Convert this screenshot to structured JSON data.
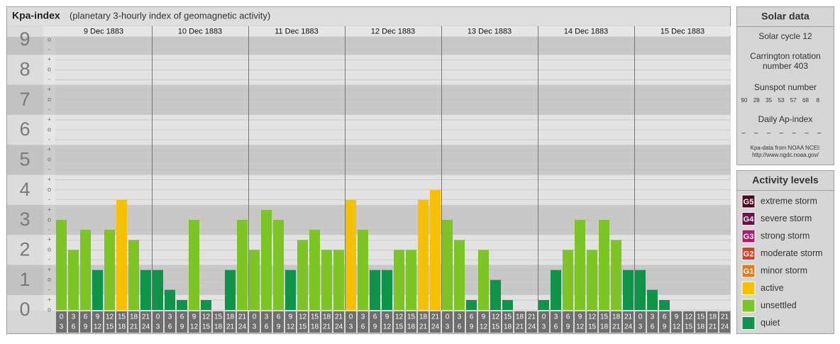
{
  "header": {
    "title": "Kpa-index",
    "subtitle": "(planetary 3-hourly index of geomagnetic activity)"
  },
  "chart_data": {
    "type": "bar",
    "ylim": [
      0,
      9
    ],
    "yticks": [
      0,
      1,
      2,
      3,
      4,
      5,
      6,
      7,
      8,
      9
    ],
    "yminorticks": [
      {
        "value": 0,
        "label": "o"
      },
      {
        "value": 0.33,
        "label": "+"
      },
      {
        "value": 0.67,
        "label": "-"
      },
      {
        "value": 1,
        "label": "o"
      },
      {
        "value": 1.33,
        "label": "+"
      },
      {
        "value": 1.67,
        "label": "-"
      },
      {
        "value": 2,
        "label": "o"
      },
      {
        "value": 2.33,
        "label": "+"
      },
      {
        "value": 2.67,
        "label": "-"
      },
      {
        "value": 3,
        "label": "o"
      },
      {
        "value": 3.33,
        "label": "+"
      },
      {
        "value": 3.67,
        "label": "-"
      },
      {
        "value": 4,
        "label": "o"
      },
      {
        "value": 4.33,
        "label": "+"
      },
      {
        "value": 4.67,
        "label": "-"
      },
      {
        "value": 5,
        "label": "o"
      },
      {
        "value": 5.33,
        "label": "+"
      },
      {
        "value": 5.67,
        "label": "-"
      },
      {
        "value": 6,
        "label": "o"
      },
      {
        "value": 6.33,
        "label": "+"
      },
      {
        "value": 6.67,
        "label": "-"
      },
      {
        "value": 7,
        "label": "o"
      },
      {
        "value": 7.33,
        "label": "+"
      },
      {
        "value": 7.67,
        "label": "-"
      },
      {
        "value": 8,
        "label": "o"
      },
      {
        "value": 8.33,
        "label": "+"
      },
      {
        "value": 8.67,
        "label": "-"
      },
      {
        "value": 9,
        "label": "o"
      }
    ],
    "hour_bins": [
      [
        0,
        3
      ],
      [
        3,
        6
      ],
      [
        6,
        9
      ],
      [
        9,
        12
      ],
      [
        12,
        15
      ],
      [
        15,
        18
      ],
      [
        18,
        21
      ],
      [
        21,
        24
      ]
    ],
    "days": [
      {
        "date": "9 Dec 1883",
        "values": [
          3,
          2,
          2.67,
          1.33,
          2.67,
          3.67,
          2.33,
          1.33
        ],
        "colors": [
          "#7dc425",
          "#7dc425",
          "#7dc425",
          "#0d9448",
          "#7dc425",
          "#f7c000",
          "#7dc425",
          "#0d9448"
        ]
      },
      {
        "date": "10 Dec 1883",
        "values": [
          1.33,
          0.67,
          0.33,
          3,
          0.33,
          0,
          1.33,
          3
        ],
        "colors": [
          "#0d9448",
          "#0d9448",
          "#0d9448",
          "#7dc425",
          "#0d9448",
          "#0d9448",
          "#0d9448",
          "#7dc425"
        ]
      },
      {
        "date": "11 Dec 1883",
        "values": [
          2,
          3.33,
          3,
          1.33,
          2.33,
          2.67,
          2,
          2
        ],
        "colors": [
          "#7dc425",
          "#7dc425",
          "#7dc425",
          "#0d9448",
          "#7dc425",
          "#7dc425",
          "#7dc425",
          "#7dc425"
        ]
      },
      {
        "date": "12 Dec 1883",
        "values": [
          3.67,
          2.67,
          1.33,
          1.33,
          2,
          2,
          3.67,
          4
        ],
        "colors": [
          "#f7c000",
          "#7dc425",
          "#0d9448",
          "#0d9448",
          "#7dc425",
          "#7dc425",
          "#f7c000",
          "#f7c000"
        ]
      },
      {
        "date": "13 Dec 1883",
        "values": [
          3,
          2.33,
          0.33,
          2,
          1,
          0.33,
          0,
          0
        ],
        "colors": [
          "#7dc425",
          "#7dc425",
          "#0d9448",
          "#7dc425",
          "#0d9448",
          "#0d9448",
          "#0d9448",
          "#0d9448"
        ]
      },
      {
        "date": "14 Dec 1883",
        "values": [
          0.33,
          1.33,
          2,
          3,
          2,
          3,
          2.33,
          1.33
        ],
        "colors": [
          "#0d9448",
          "#0d9448",
          "#7dc425",
          "#7dc425",
          "#7dc425",
          "#7dc425",
          "#7dc425",
          "#0d9448"
        ]
      },
      {
        "date": "15 Dec 1883",
        "values": [
          1.33,
          0.67,
          0.33,
          0,
          0,
          0,
          0,
          0
        ],
        "colors": [
          "#0d9448",
          "#0d9448",
          "#0d9448",
          "#0d9448",
          "#0d9448",
          "#0d9448",
          "#0d9448",
          "#0d9448"
        ]
      }
    ]
  },
  "solar": {
    "title": "Solar data",
    "cycle": "Solar cycle 12",
    "carrington": "Carrington rotation number 403",
    "sunspot_title": "Sunspot number",
    "sunspot_numbers": [
      90,
      28,
      35,
      53,
      57,
      68,
      8
    ],
    "ap_title": "Daily Ap-index",
    "ap_values": [
      "–",
      "–",
      "–",
      "–",
      "–",
      "–",
      "–"
    ],
    "source": "Kpa-data from NOAA NCEI:",
    "source_url": "http://www.ngdc.noaa.gov/"
  },
  "levels": {
    "title": "Activity levels",
    "items": [
      {
        "badge": "G5",
        "label": "extreme storm",
        "color": "#4d0a26"
      },
      {
        "badge": "G4",
        "label": "severe storm",
        "color": "#6e1048"
      },
      {
        "badge": "G3",
        "label": "strong storm",
        "color": "#b0186e"
      },
      {
        "badge": "G2",
        "label": "moderate storm",
        "color": "#d9401f"
      },
      {
        "badge": "G1",
        "label": "minor storm",
        "color": "#e07b1f"
      },
      {
        "label": "active",
        "color": "#f7c000"
      },
      {
        "label": "unsettled",
        "color": "#7dc425"
      },
      {
        "label": "quiet",
        "color": "#0d9448"
      }
    ]
  }
}
